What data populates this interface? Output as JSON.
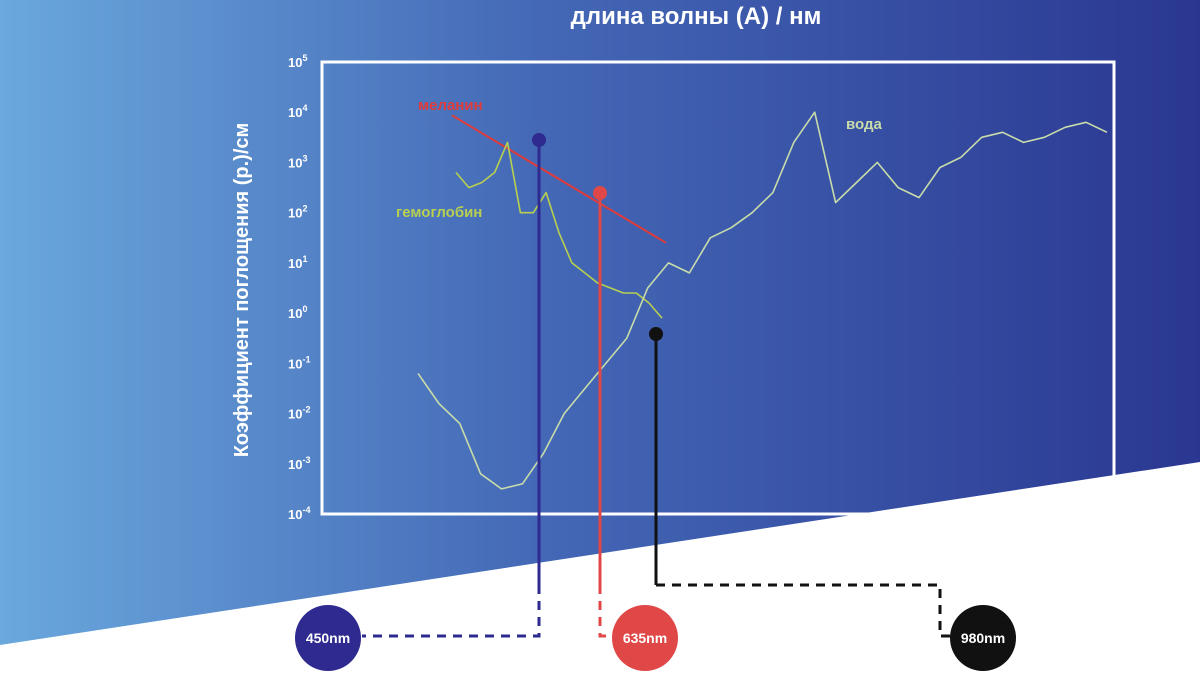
{
  "chart_data": {
    "type": "line",
    "title": "длина волны (А) / нм",
    "ylabel": "Коэффициент поглощения (р.)/см",
    "y_scale": "log",
    "ylim": [
      -4,
      5
    ],
    "y_ticks": [
      {
        "base": "10",
        "exp": "5"
      },
      {
        "base": "10",
        "exp": "4"
      },
      {
        "base": "10",
        "exp": "3"
      },
      {
        "base": "10",
        "exp": "2"
      },
      {
        "base": "10",
        "exp": "1"
      },
      {
        "base": "10",
        "exp": "0"
      },
      {
        "base": "10",
        "exp": "-1"
      },
      {
        "base": "10",
        "exp": "-2"
      },
      {
        "base": "10",
        "exp": "-3"
      },
      {
        "base": "10",
        "exp": "-4"
      }
    ],
    "series": [
      {
        "name": "меланин",
        "color": "#e03b3b",
        "x": [
          405,
          560
        ],
        "y": [
          3.8,
          1.5
        ]
      },
      {
        "name": "гемоглобин",
        "color": "#b8cf4f",
        "x": [
          410,
          420,
          430,
          440,
          450,
          455,
          460,
          470,
          480,
          490,
          500,
          510,
          520,
          530,
          540,
          550,
          560
        ],
        "y": [
          2.8,
          2.5,
          2.6,
          2.8,
          3.4,
          2.0,
          2.0,
          2.4,
          1.6,
          1.0,
          0.8,
          0.6,
          0.5,
          0.4,
          0.4,
          0.2,
          -0.1
        ]
      },
      {
        "name": "вода",
        "color": "#c8dcaa",
        "x": [
          380,
          400,
          420,
          440,
          450,
          460,
          480,
          500,
          520,
          540,
          560,
          580,
          600,
          620,
          640,
          660,
          680,
          700,
          720,
          740,
          750,
          760,
          780,
          800,
          820,
          840,
          860,
          880,
          900,
          920,
          940,
          960,
          980,
          1000
        ],
        "y": [
          -1.2,
          -1.8,
          -2.2,
          -3.2,
          -3.5,
          -3.4,
          -2.8,
          -2.0,
          -1.5,
          -1.0,
          -0.5,
          0.5,
          1.0,
          0.8,
          1.5,
          1.7,
          2.0,
          2.4,
          3.4,
          4.0,
          2.2,
          2.6,
          3.0,
          2.5,
          2.3,
          2.9,
          3.1,
          3.5,
          3.6,
          3.4,
          3.5,
          3.7,
          3.8,
          3.6
        ]
      }
    ],
    "annotations": [
      {
        "label": "меланин",
        "color": "#e03b3b"
      },
      {
        "label": "гемоглобин",
        "color": "#b8cf4f"
      },
      {
        "label": "вода",
        "color": "#c8dcaa"
      }
    ],
    "markers": [
      {
        "label": "450nm",
        "wavelength": 450,
        "color": "#2e2a8f",
        "y": 3.4
      },
      {
        "label": "635nm",
        "wavelength": 635,
        "color": "#e04848",
        "y": 2.3
      },
      {
        "label": "980nm",
        "wavelength": 980,
        "color": "#111111",
        "y": -0.4
      }
    ],
    "grid": false,
    "legend": "none"
  }
}
